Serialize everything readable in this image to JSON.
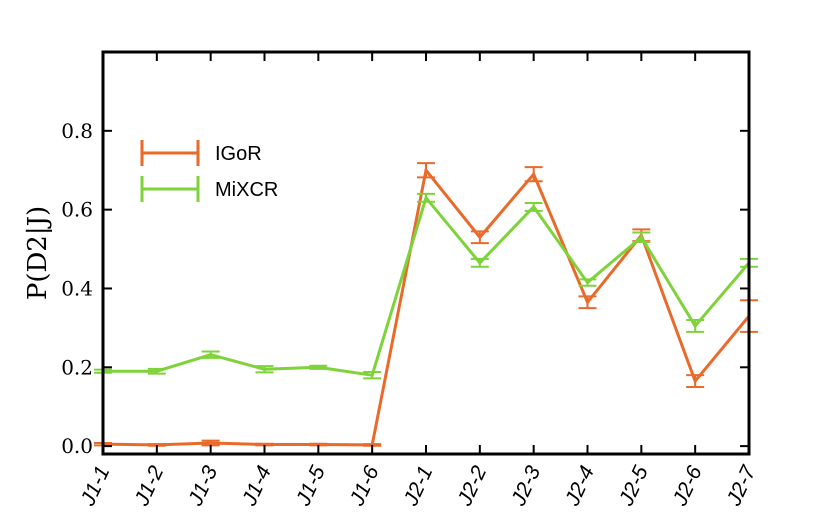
{
  "chart_data": {
    "type": "line",
    "xlabel": "",
    "ylabel": "P(D2|J)",
    "categories": [
      "J1-1",
      "J1-2",
      "J1-3",
      "J1-4",
      "J1-5",
      "J1-6",
      "J2-1",
      "J2-2",
      "J2-3",
      "J2-4",
      "J2-5",
      "J2-6",
      "J2-7"
    ],
    "ylim": [
      -0.02,
      1.0
    ],
    "yticks": [
      0.0,
      0.2,
      0.4,
      0.6,
      0.8
    ],
    "ytick_labels": [
      "0.0",
      "0.2",
      "0.4",
      "0.6",
      "0.8"
    ],
    "grid": false,
    "legend_position": "upper-left",
    "series": [
      {
        "name": "IGoR",
        "color": "#ea6a2a",
        "values": [
          0.005,
          0.003,
          0.008,
          0.004,
          0.004,
          0.003,
          0.7,
          0.53,
          0.69,
          0.365,
          0.535,
          0.165,
          0.33
        ],
        "errors": [
          0.003,
          0.002,
          0.006,
          0.002,
          0.002,
          0.002,
          0.018,
          0.015,
          0.018,
          0.015,
          0.015,
          0.015,
          0.04
        ]
      },
      {
        "name": "MiXCR",
        "color": "#7ed23a",
        "values": [
          0.19,
          0.19,
          0.232,
          0.195,
          0.2,
          0.18,
          0.63,
          0.465,
          0.607,
          0.415,
          0.53,
          0.305,
          0.465
        ],
        "errors": [
          0.004,
          0.006,
          0.008,
          0.008,
          0.004,
          0.008,
          0.01,
          0.01,
          0.01,
          0.008,
          0.012,
          0.015,
          0.01
        ]
      }
    ]
  }
}
